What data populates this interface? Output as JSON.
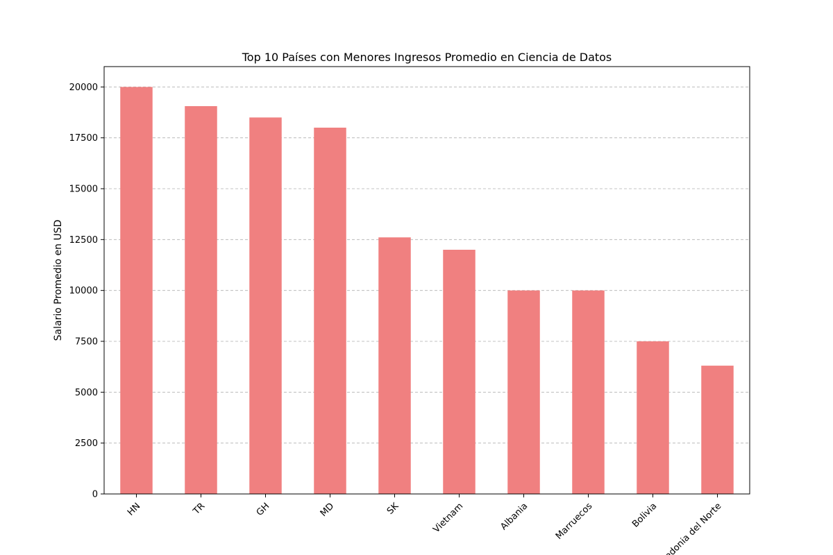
{
  "chart_data": {
    "type": "bar",
    "title": "Top 10 Países con Menores Ingresos Promedio en Ciencia de Datos",
    "xlabel": "",
    "ylabel": "Salario Promedio en USD",
    "categories": [
      "HN",
      "TR",
      "GH",
      "MD",
      "SK",
      "Vietnam",
      "Albania",
      "Marruecos",
      "Bolivia",
      "Macedonia del Norte"
    ],
    "values": [
      20000,
      19058,
      18500,
      18000,
      12608,
      12000,
      10000,
      10000,
      7500,
      6304
    ],
    "ylim": [
      0,
      21000
    ],
    "yticks": [
      "0",
      "2500",
      "5000",
      "7500",
      "10000",
      "12500",
      "15000",
      "17500",
      "20000"
    ],
    "ytick_values": [
      0,
      2500,
      5000,
      7500,
      10000,
      12500,
      15000,
      17500,
      20000
    ],
    "grid": "y, dashed",
    "bar_color": "#f08080",
    "xtick_rotation": 45
  }
}
